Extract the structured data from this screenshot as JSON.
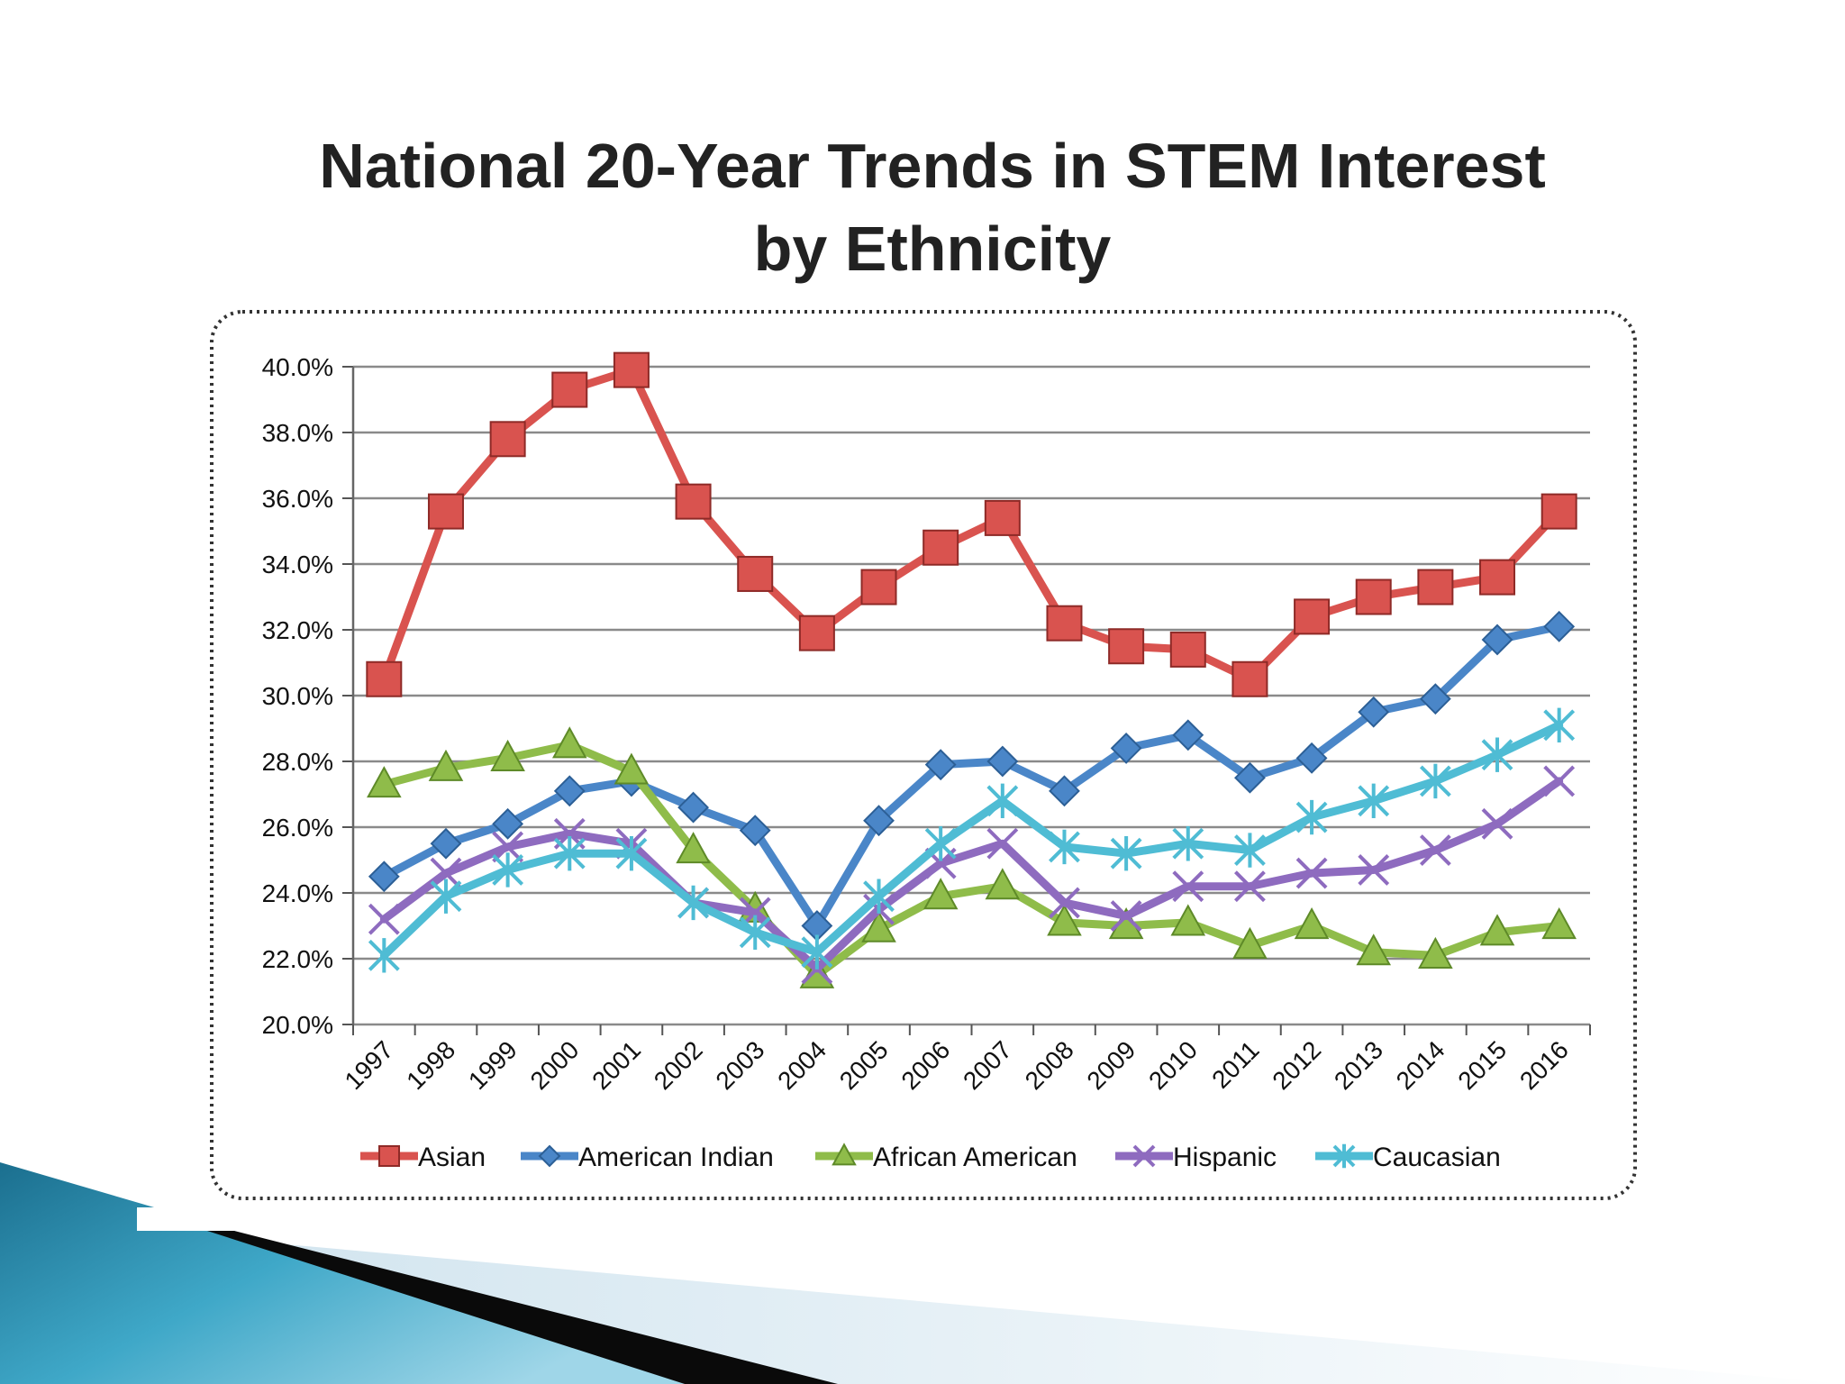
{
  "slide": {
    "title_line1": "National 20-Year Trends in STEM Interest",
    "title_line2": "by Ethnicity"
  },
  "chart_data": {
    "type": "line",
    "title": "National 20-Year Trends in STEM Interest by Ethnicity",
    "xlabel": "",
    "ylabel": "",
    "ylim": [
      20.0,
      40.0
    ],
    "yticks": [
      20,
      22,
      24,
      26,
      28,
      30,
      32,
      34,
      36,
      38,
      40
    ],
    "ytick_labels": [
      "20.0%",
      "22.0%",
      "24.0%",
      "26.0%",
      "28.0%",
      "30.0%",
      "32.0%",
      "34.0%",
      "36.0%",
      "38.0%",
      "40.0%"
    ],
    "grid": true,
    "legend_position": "bottom",
    "categories": [
      "1997",
      "1998",
      "1999",
      "2000",
      "2001",
      "2002",
      "2003",
      "2004",
      "2005",
      "2006",
      "2007",
      "2008",
      "2009",
      "2010",
      "2011",
      "2012",
      "2013",
      "2014",
      "2015",
      "2016"
    ],
    "series": [
      {
        "name": "Asian",
        "color": "#d9534f",
        "marker": "square",
        "values": [
          30.5,
          35.6,
          37.8,
          39.3,
          39.9,
          35.9,
          33.7,
          31.9,
          33.3,
          34.5,
          35.4,
          32.2,
          31.5,
          31.4,
          30.5,
          32.4,
          33.0,
          33.3,
          33.6,
          35.6
        ]
      },
      {
        "name": "American Indian",
        "color": "#4a86c8",
        "marker": "diamond",
        "values": [
          24.5,
          25.5,
          26.1,
          27.1,
          27.4,
          26.6,
          25.9,
          23.0,
          26.2,
          27.9,
          28.0,
          27.1,
          28.4,
          28.8,
          27.5,
          28.1,
          29.5,
          29.9,
          31.7,
          32.1
        ]
      },
      {
        "name": "African American",
        "color": "#8fbc4a",
        "marker": "triangle",
        "values": [
          27.3,
          27.8,
          28.1,
          28.5,
          27.7,
          25.3,
          23.5,
          21.5,
          22.9,
          23.9,
          24.2,
          23.1,
          23.0,
          23.1,
          22.4,
          23.0,
          22.2,
          22.1,
          22.8,
          23.0
        ]
      },
      {
        "name": "Hispanic",
        "color": "#8e6bbf",
        "marker": "x",
        "values": [
          23.2,
          24.6,
          25.4,
          25.8,
          25.5,
          23.7,
          23.4,
          21.7,
          23.5,
          24.9,
          25.5,
          23.7,
          23.3,
          24.2,
          24.2,
          24.6,
          24.7,
          25.3,
          26.1,
          27.4
        ]
      },
      {
        "name": "Caucasian",
        "color": "#4fbcd4",
        "marker": "star",
        "values": [
          22.1,
          23.9,
          24.7,
          25.2,
          25.2,
          23.7,
          22.8,
          22.2,
          23.9,
          25.5,
          26.8,
          25.4,
          25.2,
          25.5,
          25.3,
          26.3,
          26.8,
          27.4,
          28.2,
          29.1
        ]
      }
    ]
  }
}
